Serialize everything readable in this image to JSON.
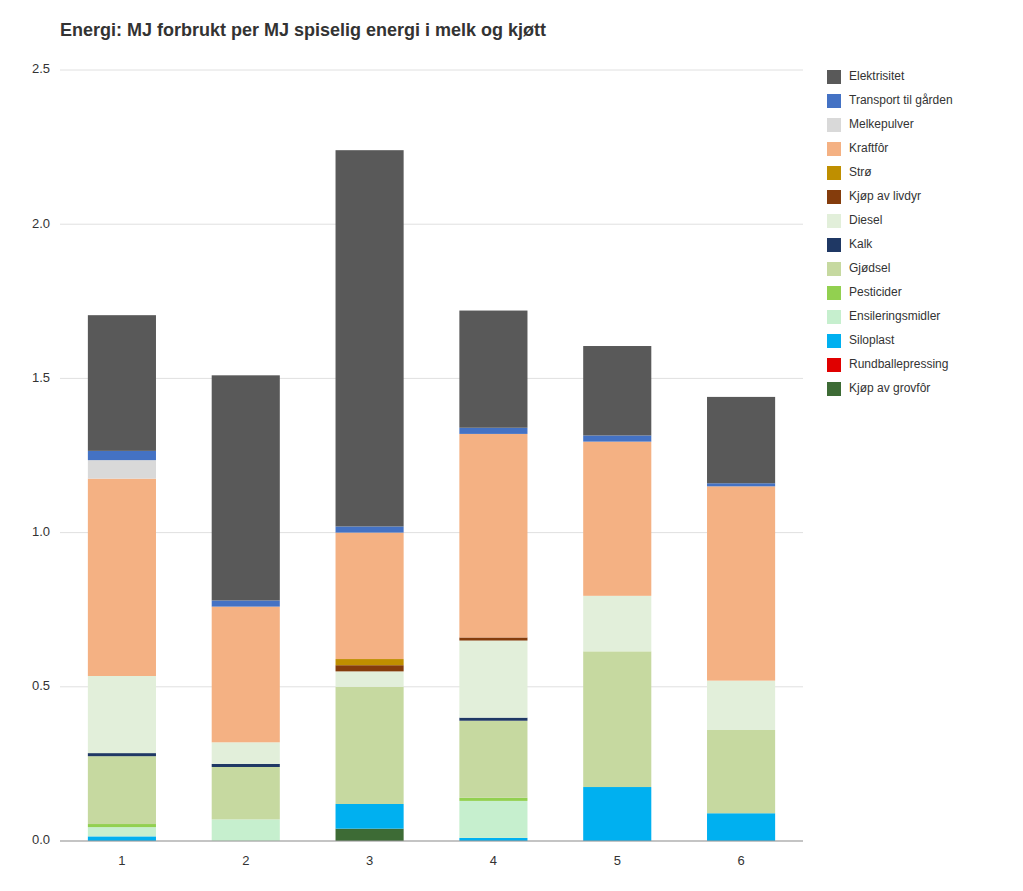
{
  "chart_data": {
    "type": "bar",
    "stacked": true,
    "title": "Energi: MJ forbrukt per MJ spiselig energi i melk og kjøtt",
    "categories": [
      1,
      2,
      3,
      4,
      5,
      6
    ],
    "ylim": [
      0.0,
      2.5
    ],
    "yticks": [
      {
        "value": 0,
        "label": "0.0"
      },
      0.5,
      {
        "value": 1,
        "label": "1.0"
      },
      1.5,
      {
        "value": 2,
        "label": "2.0"
      },
      2.5
    ],
    "grid": true,
    "legend": "right",
    "series": [
      {
        "name": "Kjøp av grovfôr",
        "color": "#3d6b35",
        "values": [
          0.0,
          0.0,
          0.04,
          0.0,
          0.0,
          0.0
        ]
      },
      {
        "name": "Rundballepressing",
        "color": "#e00000",
        "values": [
          0.0,
          0.0,
          0.0,
          0.0,
          0.0,
          0.0
        ]
      },
      {
        "name": "Siloplast",
        "color": "#00b0f0",
        "values": [
          0.015,
          0.0,
          0.08,
          0.01,
          0.175,
          0.09
        ]
      },
      {
        "name": "Ensileringsmidler",
        "color": "#c6efce",
        "values": [
          0.03,
          0.07,
          0.0,
          0.12,
          0.0,
          0.0
        ]
      },
      {
        "name": "Pesticider",
        "color": "#92d050",
        "values": [
          0.01,
          0.0,
          0.0,
          0.01,
          0.0,
          0.0
        ]
      },
      {
        "name": "Gjødsel",
        "color": "#c6d9a0",
        "values": [
          0.22,
          0.17,
          0.38,
          0.25,
          0.44,
          0.27
        ]
      },
      {
        "name": "Kalk",
        "color": "#1f3864",
        "values": [
          0.01,
          0.01,
          0.0,
          0.01,
          0.0,
          0.0
        ]
      },
      {
        "name": "Diesel",
        "color": "#e2efda",
        "values": [
          0.25,
          0.07,
          0.05,
          0.25,
          0.18,
          0.16
        ]
      },
      {
        "name": "Kjøp av livdyr",
        "color": "#843c0c",
        "values": [
          0.0,
          0.0,
          0.02,
          0.01,
          0.0,
          0.0
        ]
      },
      {
        "name": "Strø",
        "color": "#bf8f00",
        "values": [
          0.0,
          0.0,
          0.02,
          0.0,
          0.0,
          0.0
        ]
      },
      {
        "name": "Kraftfôr",
        "color": "#f4b183",
        "values": [
          0.64,
          0.44,
          0.41,
          0.66,
          0.5,
          0.63
        ]
      },
      {
        "name": "Melkepulver",
        "color": "#d9d9d9",
        "values": [
          0.06,
          0.0,
          0.0,
          0.0,
          0.0,
          0.0
        ]
      },
      {
        "name": "Transport til gården",
        "color": "#4472c4",
        "values": [
          0.03,
          0.02,
          0.02,
          0.02,
          0.02,
          0.01
        ]
      },
      {
        "name": "Elektrisitet",
        "color": "#595959",
        "values": [
          0.44,
          0.73,
          1.22,
          0.38,
          0.29,
          0.28
        ]
      }
    ]
  }
}
